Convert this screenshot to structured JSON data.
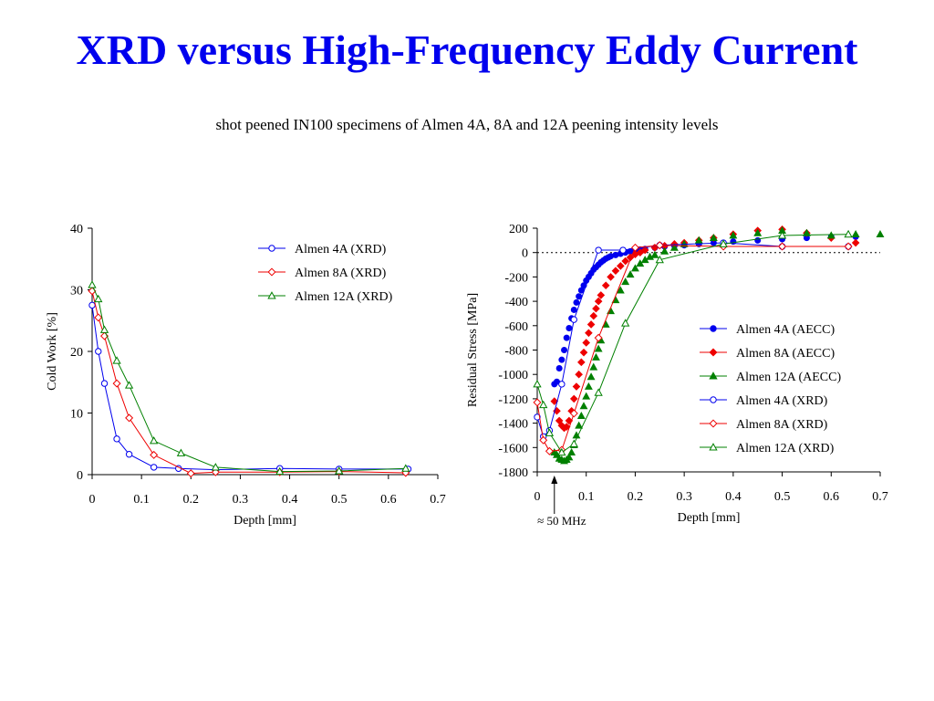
{
  "title": "XRD versus High-Frequency Eddy Current",
  "subtitle": "shot peened IN100 specimens of Almen 4A, 8A and 12A peening intensity levels",
  "colors": {
    "blue": "#0000ee",
    "red": "#ee0000",
    "green": "#008000",
    "title": "#0000ee"
  },
  "chart_data": [
    {
      "type": "line",
      "xlabel": "Depth [mm]",
      "ylabel": "Cold Work [%]",
      "xlim": [
        0,
        0.7
      ],
      "ylim": [
        0,
        40
      ],
      "xticks": [
        "0",
        "0.1",
        "0.2",
        "0.3",
        "0.4",
        "0.5",
        "0.6",
        "0.7"
      ],
      "yticks": [
        "0",
        "10",
        "20",
        "30",
        "40"
      ],
      "grid": false,
      "legend": "top-right",
      "series": [
        {
          "name": "Almen 4A (XRD)",
          "color": "blue",
          "marker": "circle-open",
          "x": [
            0,
            0.0125,
            0.025,
            0.05,
            0.075,
            0.125,
            0.175,
            0.25,
            0.38,
            0.5,
            0.64
          ],
          "y": [
            27.5,
            20,
            14.8,
            5.8,
            3.3,
            1.2,
            1.0,
            0.8,
            1.0,
            0.9,
            0.9
          ]
        },
        {
          "name": "Almen 8A (XRD)",
          "color": "red",
          "marker": "diamond-open",
          "x": [
            0,
            0.0125,
            0.025,
            0.05,
            0.075,
            0.125,
            0.2,
            0.25,
            0.38,
            0.5,
            0.635
          ],
          "y": [
            29.8,
            25.5,
            22.5,
            14.8,
            9.2,
            3.2,
            0.2,
            0.4,
            0.4,
            0.5,
            0.3
          ]
        },
        {
          "name": "Almen 12A (XRD)",
          "color": "green",
          "marker": "triangle-open",
          "x": [
            0,
            0.0125,
            0.025,
            0.05,
            0.075,
            0.125,
            0.18,
            0.25,
            0.38,
            0.5,
            0.635
          ],
          "y": [
            30.8,
            28.5,
            23.5,
            18.5,
            14.5,
            5.5,
            3.5,
            1.2,
            0.5,
            0.6,
            1.0
          ]
        }
      ]
    },
    {
      "type": "scatter",
      "xlabel": "Depth [mm]",
      "ylabel": "Residual Stress [MPa]",
      "xlim": [
        0,
        0.7
      ],
      "ylim": [
        -1800,
        200
      ],
      "xticks": [
        "0",
        "0.1",
        "0.2",
        "0.3",
        "0.4",
        "0.5",
        "0.6",
        "0.7"
      ],
      "yticks": [
        "200",
        "0",
        "-200",
        "-400",
        "-600",
        "-800",
        "-1000",
        "-1200",
        "-1400",
        "-1600",
        "-1800"
      ],
      "grid": false,
      "zero_line": "dotted",
      "legend": "right",
      "annotation": "≈ 50 MHz",
      "annotation_x": 0.035,
      "series": [
        {
          "name": "Almen 4A (AECC)",
          "color": "blue",
          "marker": "circle-filled",
          "x": [
            0.035,
            0.04,
            0.045,
            0.05,
            0.055,
            0.06,
            0.065,
            0.07,
            0.075,
            0.08,
            0.085,
            0.09,
            0.095,
            0.1,
            0.105,
            0.11,
            0.115,
            0.12,
            0.125,
            0.13,
            0.135,
            0.14,
            0.145,
            0.15,
            0.16,
            0.17,
            0.18,
            0.19,
            0.2,
            0.21,
            0.22,
            0.24,
            0.26,
            0.28,
            0.3,
            0.33,
            0.36,
            0.4,
            0.45,
            0.5,
            0.55,
            0.6,
            0.65
          ],
          "y": [
            -1080,
            -1060,
            -950,
            -880,
            -800,
            -700,
            -620,
            -540,
            -470,
            -410,
            -360,
            -310,
            -270,
            -230,
            -200,
            -170,
            -140,
            -120,
            -100,
            -80,
            -65,
            -50,
            -40,
            -30,
            -20,
            -10,
            0,
            10,
            20,
            25,
            30,
            40,
            50,
            55,
            60,
            70,
            80,
            90,
            100,
            110,
            120,
            130,
            130
          ]
        },
        {
          "name": "Almen 8A (AECC)",
          "color": "red",
          "marker": "diamond-filled",
          "x": [
            0.035,
            0.04,
            0.045,
            0.05,
            0.055,
            0.06,
            0.065,
            0.07,
            0.075,
            0.08,
            0.085,
            0.09,
            0.095,
            0.1,
            0.105,
            0.11,
            0.115,
            0.12,
            0.125,
            0.13,
            0.14,
            0.15,
            0.16,
            0.17,
            0.18,
            0.19,
            0.2,
            0.21,
            0.22,
            0.24,
            0.26,
            0.28,
            0.3,
            0.33,
            0.36,
            0.4,
            0.45,
            0.5,
            0.55,
            0.6,
            0.65
          ],
          "y": [
            -1220,
            -1300,
            -1380,
            -1420,
            -1440,
            -1430,
            -1380,
            -1300,
            -1200,
            -1100,
            -1000,
            -900,
            -820,
            -740,
            -660,
            -590,
            -520,
            -460,
            -400,
            -350,
            -270,
            -200,
            -150,
            -110,
            -70,
            -40,
            -15,
            0,
            20,
            40,
            55,
            70,
            80,
            100,
            120,
            150,
            180,
            190,
            160,
            120,
            80
          ]
        },
        {
          "name": "Almen 12A (AECC)",
          "color": "green",
          "marker": "triangle-filled",
          "x": [
            0.035,
            0.04,
            0.045,
            0.05,
            0.055,
            0.06,
            0.065,
            0.07,
            0.075,
            0.08,
            0.085,
            0.09,
            0.095,
            0.1,
            0.105,
            0.11,
            0.115,
            0.12,
            0.125,
            0.13,
            0.14,
            0.15,
            0.16,
            0.17,
            0.18,
            0.19,
            0.2,
            0.21,
            0.22,
            0.23,
            0.24,
            0.26,
            0.28,
            0.3,
            0.33,
            0.36,
            0.4,
            0.45,
            0.5,
            0.55,
            0.6,
            0.65,
            0.7
          ],
          "y": [
            -1640,
            -1660,
            -1690,
            -1700,
            -1710,
            -1700,
            -1680,
            -1640,
            -1580,
            -1500,
            -1420,
            -1340,
            -1260,
            -1180,
            -1100,
            -1020,
            -940,
            -860,
            -790,
            -720,
            -590,
            -480,
            -390,
            -310,
            -240,
            -180,
            -130,
            -90,
            -60,
            -35,
            -20,
            10,
            40,
            70,
            100,
            120,
            140,
            160,
            180,
            160,
            140,
            150,
            150
          ]
        },
        {
          "name": "Almen 4A (XRD)",
          "color": "blue",
          "marker": "circle-open",
          "line": true,
          "x": [
            0,
            0.0125,
            0.025,
            0.05,
            0.075,
            0.125,
            0.175,
            0.25,
            0.38,
            0.5,
            0.635
          ],
          "y": [
            -1350,
            -1510,
            -1460,
            -1080,
            -550,
            20,
            20,
            60,
            80,
            50,
            50
          ]
        },
        {
          "name": "Almen 8A (XRD)",
          "color": "red",
          "marker": "diamond-open",
          "line": true,
          "x": [
            0,
            0.0125,
            0.025,
            0.05,
            0.075,
            0.125,
            0.2,
            0.25,
            0.38,
            0.5,
            0.635
          ],
          "y": [
            -1230,
            -1540,
            -1630,
            -1620,
            -1320,
            -700,
            40,
            60,
            50,
            50,
            50
          ]
        },
        {
          "name": "Almen 12A (XRD)",
          "color": "green",
          "marker": "triangle-open",
          "line": true,
          "x": [
            0,
            0.0125,
            0.025,
            0.05,
            0.075,
            0.125,
            0.18,
            0.25,
            0.38,
            0.5,
            0.635
          ],
          "y": [
            -1080,
            -1250,
            -1480,
            -1640,
            -1570,
            -1150,
            -580,
            -60,
            70,
            140,
            150
          ]
        }
      ]
    }
  ]
}
